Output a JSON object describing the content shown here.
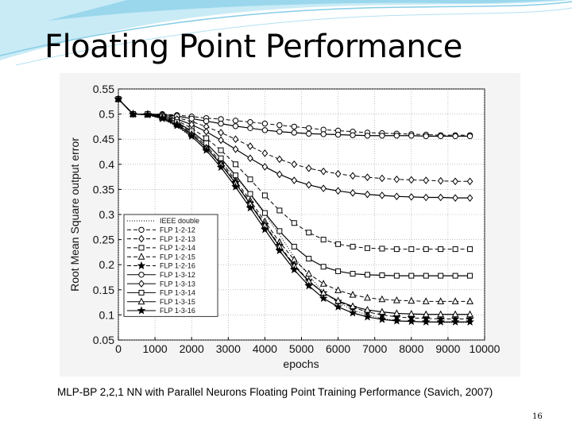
{
  "slide": {
    "title": "Floating Point Performance",
    "caption": "MLP-BP 2,2,1 NN with Parallel Neurons Floating Point Training Performance (Savich, 2007)",
    "slide_number": "16"
  },
  "colors": {
    "header_wave": "#9ad7ec",
    "header_wave_light": "#c9ebf6",
    "line": "#000000"
  },
  "chart_data": {
    "type": "line",
    "xlabel": "epochs",
    "ylabel": "Root Mean Square output error",
    "xlim": [
      0,
      10000
    ],
    "ylim": [
      0.05,
      0.55
    ],
    "xticks": [
      0,
      1000,
      2000,
      3000,
      4000,
      5000,
      6000,
      7000,
      8000,
      9000,
      10000
    ],
    "yticks": [
      0.05,
      0.1,
      0.15,
      0.2,
      0.25,
      0.3,
      0.35,
      0.4,
      0.45,
      0.5,
      0.55
    ],
    "grid": true,
    "legend_position": "center-left",
    "x": [
      0,
      400,
      800,
      1200,
      1600,
      2000,
      2400,
      2800,
      3200,
      3600,
      4000,
      4400,
      4800,
      5200,
      5600,
      6000,
      6400,
      6800,
      7200,
      7600,
      8000,
      8400,
      8800,
      9200,
      9600
    ],
    "series": [
      {
        "name": "IEEE double",
        "marker": "none",
        "dash": "dotted",
        "values": [
          0.53,
          0.5,
          0.498,
          0.49,
          0.475,
          0.455,
          0.43,
          0.405,
          0.375,
          0.34,
          0.3,
          0.26,
          0.215,
          0.178,
          0.145,
          0.125,
          0.11,
          0.1,
          0.093,
          0.089,
          0.087,
          0.086,
          0.085,
          0.085,
          0.085
        ]
      },
      {
        "name": "FLP 1-2-12",
        "marker": "circle",
        "dash": "dashed",
        "values": [
          0.53,
          0.5,
          0.5,
          0.5,
          0.498,
          0.495,
          0.492,
          0.49,
          0.487,
          0.484,
          0.481,
          0.478,
          0.475,
          0.472,
          0.469,
          0.467,
          0.465,
          0.463,
          0.462,
          0.461,
          0.46,
          0.459,
          0.458,
          0.458,
          0.458
        ]
      },
      {
        "name": "FLP 1-2-13",
        "marker": "diamond",
        "dash": "dashed",
        "values": [
          0.53,
          0.5,
          0.5,
          0.498,
          0.493,
          0.485,
          0.475,
          0.463,
          0.45,
          0.436,
          0.422,
          0.41,
          0.4,
          0.392,
          0.386,
          0.381,
          0.377,
          0.374,
          0.372,
          0.37,
          0.369,
          0.368,
          0.367,
          0.366,
          0.366
        ]
      },
      {
        "name": "FLP 1-2-14",
        "marker": "square",
        "dash": "dashed",
        "values": [
          0.53,
          0.5,
          0.5,
          0.496,
          0.487,
          0.472,
          0.452,
          0.428,
          0.4,
          0.37,
          0.338,
          0.308,
          0.283,
          0.264,
          0.25,
          0.241,
          0.236,
          0.233,
          0.232,
          0.231,
          0.231,
          0.231,
          0.231,
          0.231,
          0.231
        ]
      },
      {
        "name": "FLP 1-2-15",
        "marker": "triangle",
        "dash": "dashed",
        "values": [
          0.53,
          0.5,
          0.5,
          0.494,
          0.482,
          0.463,
          0.437,
          0.405,
          0.368,
          0.328,
          0.286,
          0.245,
          0.21,
          0.182,
          0.162,
          0.149,
          0.14,
          0.134,
          0.131,
          0.129,
          0.128,
          0.127,
          0.127,
          0.127,
          0.127
        ]
      },
      {
        "name": "FLP 1-2-16",
        "marker": "star",
        "dash": "dashed",
        "values": [
          0.53,
          0.5,
          0.499,
          0.492,
          0.479,
          0.459,
          0.433,
          0.401,
          0.364,
          0.323,
          0.28,
          0.238,
          0.2,
          0.168,
          0.144,
          0.127,
          0.115,
          0.106,
          0.1,
          0.096,
          0.094,
          0.093,
          0.092,
          0.092,
          0.092
        ]
      },
      {
        "name": "FLP 1-3-12",
        "marker": "circle",
        "dash": "solid",
        "values": [
          0.53,
          0.5,
          0.5,
          0.499,
          0.496,
          0.491,
          0.486,
          0.481,
          0.476,
          0.472,
          0.468,
          0.465,
          0.463,
          0.461,
          0.46,
          0.459,
          0.458,
          0.457,
          0.457,
          0.457,
          0.457,
          0.456,
          0.456,
          0.456,
          0.456
        ]
      },
      {
        "name": "FLP 1-3-13",
        "marker": "diamond",
        "dash": "solid",
        "values": [
          0.53,
          0.5,
          0.5,
          0.497,
          0.49,
          0.479,
          0.465,
          0.448,
          0.43,
          0.412,
          0.395,
          0.38,
          0.368,
          0.359,
          0.352,
          0.347,
          0.343,
          0.34,
          0.338,
          0.336,
          0.335,
          0.334,
          0.334,
          0.333,
          0.333
        ]
      },
      {
        "name": "FLP 1-3-14",
        "marker": "square",
        "dash": "solid",
        "values": [
          0.53,
          0.5,
          0.5,
          0.495,
          0.484,
          0.466,
          0.442,
          0.412,
          0.378,
          0.341,
          0.303,
          0.267,
          0.236,
          0.212,
          0.196,
          0.187,
          0.182,
          0.18,
          0.179,
          0.178,
          0.178,
          0.178,
          0.178,
          0.178,
          0.178
        ]
      },
      {
        "name": "FLP 1-3-15",
        "marker": "triangle",
        "dash": "solid",
        "values": [
          0.53,
          0.5,
          0.499,
          0.493,
          0.48,
          0.46,
          0.433,
          0.4,
          0.362,
          0.321,
          0.278,
          0.236,
          0.198,
          0.167,
          0.144,
          0.128,
          0.117,
          0.11,
          0.106,
          0.103,
          0.102,
          0.101,
          0.101,
          0.101,
          0.101
        ]
      },
      {
        "name": "FLP 1-3-16",
        "marker": "star",
        "dash": "solid",
        "values": [
          0.53,
          0.5,
          0.499,
          0.491,
          0.477,
          0.456,
          0.428,
          0.394,
          0.355,
          0.313,
          0.27,
          0.228,
          0.19,
          0.158,
          0.133,
          0.116,
          0.104,
          0.096,
          0.091,
          0.088,
          0.087,
          0.086,
          0.086,
          0.086,
          0.086
        ]
      }
    ]
  }
}
